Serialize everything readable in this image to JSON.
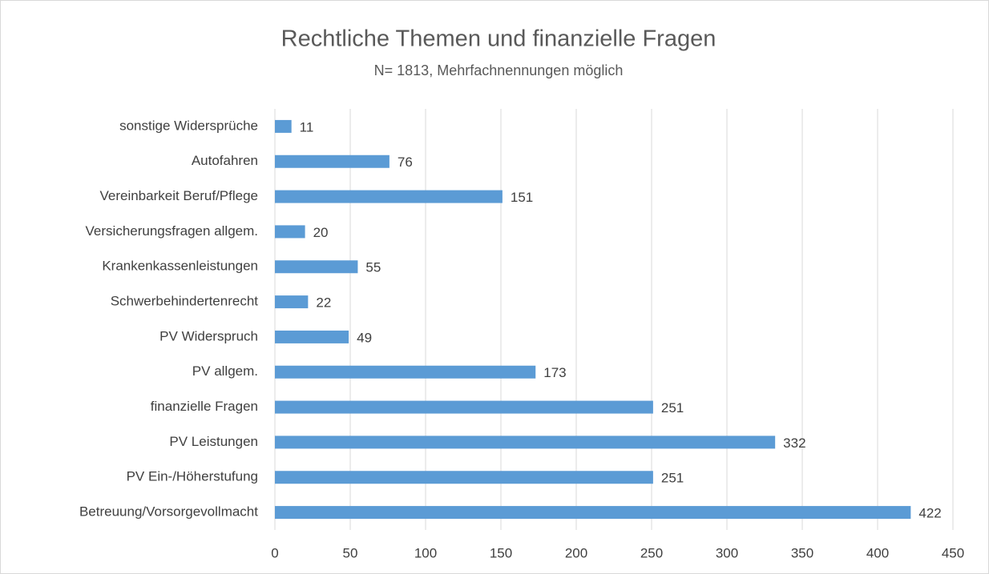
{
  "chart_data": {
    "type": "bar",
    "orientation": "horizontal",
    "title": "Rechtliche Themen und finanzielle Fragen",
    "subtitle": "N= 1813, Mehrfachnennungen möglich",
    "categories": [
      "sonstige Widersprüche",
      "Autofahren",
      "Vereinbarkeit Beruf/Pflege",
      "Versicherungsfragen allgem.",
      "Krankenkassenleistungen",
      "Schwerbehindertenrecht",
      "PV Widerspruch",
      "PV allgem.",
      "finanzielle Fragen",
      "PV Leistungen",
      "PV Ein-/Höherstufung",
      "Betreuung/Vorsorgevollmacht"
    ],
    "values": [
      11,
      76,
      151,
      20,
      55,
      22,
      49,
      173,
      251,
      332,
      251,
      422
    ],
    "color": "#5b9bd5",
    "xlim": [
      0,
      450
    ],
    "xticks": [
      0,
      50,
      100,
      150,
      200,
      250,
      300,
      350,
      400,
      450
    ],
    "grid": true
  }
}
